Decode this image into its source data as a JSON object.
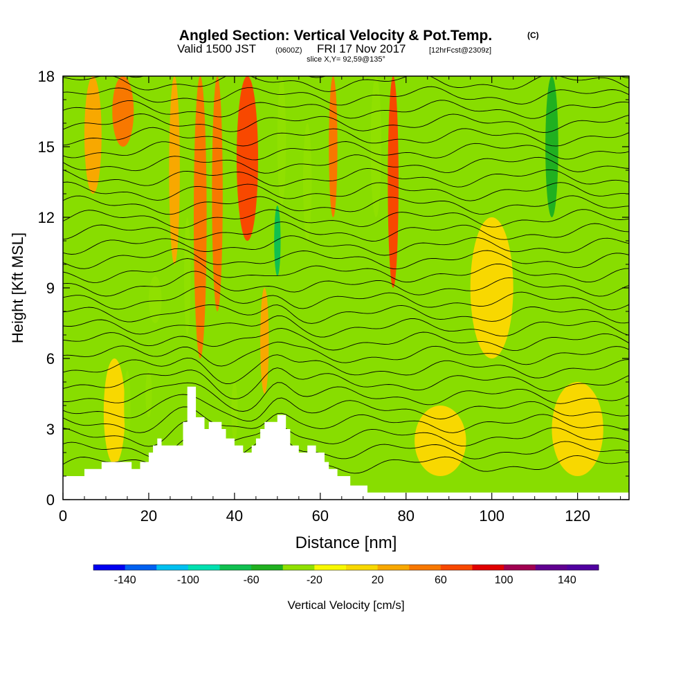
{
  "chart_data": {
    "type": "heatmap",
    "title": {
      "main": "Angled Section: Vertical Velocity & Pot.Temp.",
      "copyright": "(C)",
      "valid_prefix": "Valid 1500 JST",
      "valid_utc": "(0600Z)",
      "valid_date": "FRI 17 Nov 2017",
      "forecast": "[12hrFcst@2309z]",
      "slice": "slice X,Y= 92,59@135°"
    },
    "xlabel": "Distance [nm]",
    "ylabel": "Height [Kft MSL]",
    "xlim": [
      0,
      132
    ],
    "ylim": [
      0,
      18
    ],
    "x_ticks": [
      "0",
      "20",
      "40",
      "60",
      "80",
      "100",
      "120"
    ],
    "y_ticks": [
      "0",
      "3",
      "6",
      "9",
      "12",
      "15",
      "18"
    ],
    "colorbar": {
      "label": "Vertical Velocity [cm/s]",
      "tick_labels": [
        "-140",
        "-100",
        "-60",
        "-20",
        "20",
        "60",
        "100",
        "140"
      ],
      "levels": [
        -160,
        -140,
        -120,
        -100,
        -80,
        -60,
        -40,
        -20,
        0,
        20,
        40,
        60,
        80,
        100,
        120,
        140,
        160
      ],
      "colors": [
        "#0000f0",
        "#0060f0",
        "#00c0f0",
        "#00e0b0",
        "#10c050",
        "#20b020",
        "#90e000",
        "#f8f800",
        "#f8d800",
        "#f8a800",
        "#f87800",
        "#f84800",
        "#e00000",
        "#a00050",
        "#600090",
        "#5000a0"
      ]
    },
    "background_color": "#88dd00",
    "terrain_profile": [
      [
        0,
        1.0
      ],
      [
        5,
        1.0
      ],
      [
        5,
        1.3
      ],
      [
        9,
        1.3
      ],
      [
        9,
        1.6
      ],
      [
        16,
        1.6
      ],
      [
        16,
        1.3
      ],
      [
        18,
        1.3
      ],
      [
        18,
        1.6
      ],
      [
        20,
        1.6
      ],
      [
        20,
        2.0
      ],
      [
        21,
        2.0
      ],
      [
        21,
        2.3
      ],
      [
        22,
        2.3
      ],
      [
        22,
        2.6
      ],
      [
        23,
        2.6
      ],
      [
        23,
        2.3
      ],
      [
        28,
        2.3
      ],
      [
        28,
        3.3
      ],
      [
        29,
        3.3
      ],
      [
        29,
        4.8
      ],
      [
        31,
        4.8
      ],
      [
        31,
        3.5
      ],
      [
        33,
        3.5
      ],
      [
        33,
        3.0
      ],
      [
        34,
        3.0
      ],
      [
        34,
        3.3
      ],
      [
        37,
        3.3
      ],
      [
        37,
        3.0
      ],
      [
        38,
        3.0
      ],
      [
        38,
        2.6
      ],
      [
        40,
        2.6
      ],
      [
        40,
        2.3
      ],
      [
        42,
        2.3
      ],
      [
        42,
        2.0
      ],
      [
        44,
        2.0
      ],
      [
        44,
        2.3
      ],
      [
        45,
        2.3
      ],
      [
        45,
        2.6
      ],
      [
        46,
        2.6
      ],
      [
        46,
        3.0
      ],
      [
        47,
        3.0
      ],
      [
        47,
        3.3
      ],
      [
        50,
        3.3
      ],
      [
        50,
        3.6
      ],
      [
        52,
        3.6
      ],
      [
        52,
        3.0
      ],
      [
        53,
        3.0
      ],
      [
        53,
        2.3
      ],
      [
        55,
        2.3
      ],
      [
        55,
        2.0
      ],
      [
        57,
        2.0
      ],
      [
        57,
        2.3
      ],
      [
        59,
        2.3
      ],
      [
        59,
        2.0
      ],
      [
        61,
        2.0
      ],
      [
        61,
        1.6
      ],
      [
        62,
        1.6
      ],
      [
        62,
        1.3
      ],
      [
        64,
        1.3
      ],
      [
        64,
        1.0
      ],
      [
        67,
        1.0
      ],
      [
        67,
        0.6
      ],
      [
        71,
        0.6
      ],
      [
        71,
        0.3
      ],
      [
        132,
        0.3
      ]
    ],
    "velocity_features": [
      {
        "x": 7,
        "y0": 13,
        "y1": 18,
        "w": 4,
        "value": 25
      },
      {
        "x": 14,
        "y0": 15,
        "y1": 18,
        "w": 5,
        "value": 40
      },
      {
        "x": 26,
        "y0": 10,
        "y1": 18,
        "w": 2.5,
        "value": 35
      },
      {
        "x": 32,
        "y0": 6,
        "y1": 18,
        "w": 3,
        "value": 50
      },
      {
        "x": 36,
        "y0": 8,
        "y1": 18,
        "w": 2.5,
        "value": 40
      },
      {
        "x": 43,
        "y0": 11,
        "y1": 18,
        "w": 5,
        "value": 65
      },
      {
        "x": 47,
        "y0": 4.5,
        "y1": 9,
        "w": 2,
        "value": 25
      },
      {
        "x": 63,
        "y0": 12,
        "y1": 18,
        "w": 2,
        "value": 45
      },
      {
        "x": 77,
        "y0": 9,
        "y1": 18,
        "w": 2.5,
        "value": 60
      },
      {
        "x": 50,
        "y0": 9.5,
        "y1": 12.5,
        "w": 1.5,
        "value": -75
      },
      {
        "x": 51,
        "y0": 12.5,
        "y1": 18,
        "w": 2,
        "value": -40
      },
      {
        "x": 32,
        "y0": 7,
        "y1": 12,
        "w": 1.8,
        "value": -35
      },
      {
        "x": 35,
        "y0": 12,
        "y1": 16,
        "w": 1.5,
        "value": -30
      },
      {
        "x": 29,
        "y0": 7,
        "y1": 12,
        "w": 1.5,
        "value": -35
      },
      {
        "x": 21.5,
        "y0": 7.5,
        "y1": 9.5,
        "w": 3,
        "value": -30
      },
      {
        "x": 57,
        "y0": 11,
        "y1": 16,
        "w": 2,
        "value": -35
      },
      {
        "x": 73,
        "y0": 12,
        "y1": 18,
        "w": 2.5,
        "value": -40
      },
      {
        "x": 114,
        "y0": 12,
        "y1": 18,
        "w": 3,
        "value": -50
      },
      {
        "x": 15,
        "y0": 2.5,
        "y1": 5.5,
        "w": 1.5,
        "value": -30
      },
      {
        "x": 20,
        "y0": 3.5,
        "y1": 5.5,
        "w": 1.5,
        "value": -30
      },
      {
        "x": 40,
        "y0": 2.5,
        "y1": 5,
        "w": 1.5,
        "value": -30
      },
      {
        "x": 12,
        "y0": 1.5,
        "y1": 6,
        "w": 5,
        "value": 12
      },
      {
        "x": 88,
        "y0": 1,
        "y1": 4,
        "w": 12,
        "value": 12
      },
      {
        "x": 120,
        "y0": 1,
        "y1": 5,
        "w": 12,
        "value": 12
      },
      {
        "x": 100,
        "y0": 6,
        "y1": 12,
        "w": 10,
        "value": 12
      }
    ]
  }
}
